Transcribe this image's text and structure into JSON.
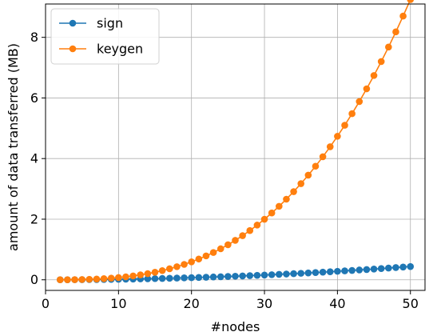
{
  "chart_data": {
    "type": "line",
    "xlabel": "#nodes",
    "ylabel": "amount of data transferred (MB)",
    "xlim": [
      0,
      52
    ],
    "ylim": [
      -0.35,
      9.1
    ],
    "x_ticks": [
      0,
      10,
      20,
      30,
      40,
      50
    ],
    "y_ticks": [
      0,
      2,
      4,
      6,
      8
    ],
    "grid": true,
    "legend_position": "top-left",
    "x": [
      2,
      3,
      4,
      5,
      6,
      7,
      8,
      9,
      10,
      11,
      12,
      13,
      14,
      15,
      16,
      17,
      18,
      19,
      20,
      21,
      22,
      23,
      24,
      25,
      26,
      27,
      28,
      29,
      30,
      31,
      32,
      33,
      34,
      35,
      36,
      37,
      38,
      39,
      40,
      41,
      42,
      43,
      44,
      45,
      46,
      47,
      48,
      49,
      50
    ],
    "series": [
      {
        "name": "sign",
        "color": "#1f77b4",
        "values": [
          0.0007,
          0.0015,
          0.0028,
          0.0044,
          0.0063,
          0.0086,
          0.0112,
          0.0142,
          0.0175,
          0.0212,
          0.0252,
          0.0296,
          0.0343,
          0.0394,
          0.0448,
          0.0506,
          0.0567,
          0.0632,
          0.07,
          0.0772,
          0.0847,
          0.0926,
          0.1008,
          0.1094,
          0.1183,
          0.1276,
          0.1372,
          0.1472,
          0.1575,
          0.1682,
          0.1792,
          0.1906,
          0.2023,
          0.2144,
          0.2268,
          0.2396,
          0.2527,
          0.2662,
          0.28,
          0.2942,
          0.3087,
          0.3236,
          0.3388,
          0.3544,
          0.3703,
          0.3866,
          0.4032,
          0.4202,
          0.4375
        ]
      },
      {
        "name": "keygen",
        "color": "#ff7f0e",
        "values": [
          0.0006,
          0.002,
          0.0047,
          0.0093,
          0.016,
          0.0254,
          0.0379,
          0.054,
          0.074,
          0.0985,
          0.1279,
          0.1626,
          0.2031,
          0.2498,
          0.3032,
          0.3637,
          0.4317,
          0.5077,
          0.5922,
          0.6855,
          0.7882,
          0.9006,
          1.0232,
          1.1565,
          1.3009,
          1.4568,
          1.6247,
          1.805,
          1.9982,
          2.2047,
          2.425,
          2.6595,
          2.9085,
          3.1727,
          3.4524,
          3.7481,
          4.0601,
          4.389,
          4.7352,
          5.0991,
          5.4812,
          5.8819,
          6.3016,
          6.7409,
          7.2001,
          7.6798,
          8.1802,
          8.702,
          9.2454
        ]
      }
    ]
  }
}
